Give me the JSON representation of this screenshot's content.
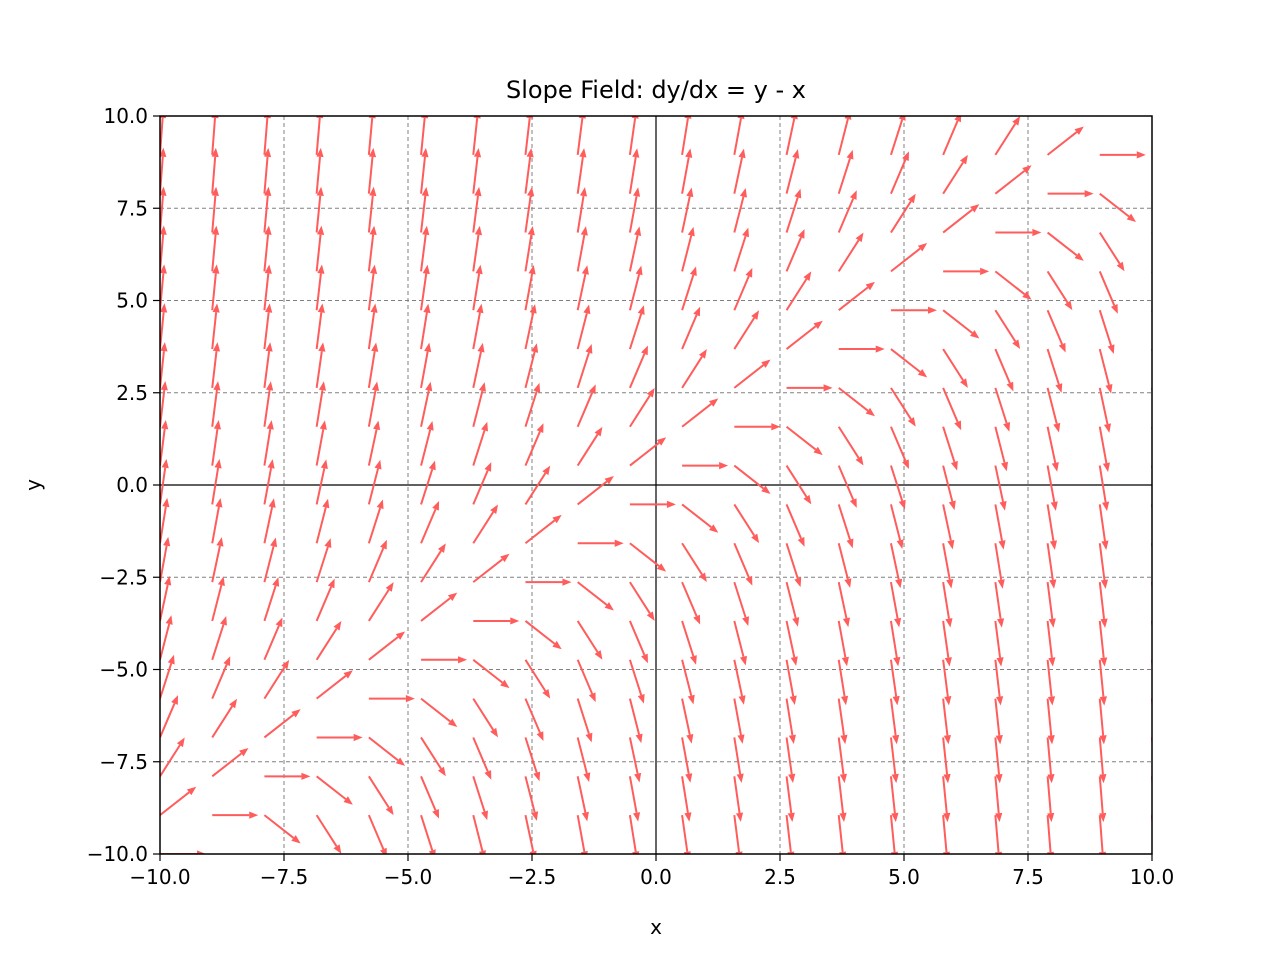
{
  "chart_data": {
    "type": "quiver",
    "title": "Slope Field: dy/dx = y - x",
    "xlabel": "x",
    "ylabel": "y",
    "xlim": [
      -10,
      10
    ],
    "ylim": [
      -10,
      10
    ],
    "slope_function": "y - x",
    "grid": true,
    "grid_style": "dashed",
    "reference_axes": true,
    "arrow_color": "#ff5c5c",
    "x_ticks": [
      "−10.0",
      "−7.5",
      "−5.0",
      "−2.5",
      "0.0",
      "2.5",
      "5.0",
      "7.5",
      "10.0"
    ],
    "y_ticks": [
      "−10.0",
      "−7.5",
      "−5.0",
      "−2.5",
      "0.0",
      "2.5",
      "5.0",
      "7.5",
      "10.0"
    ],
    "x_tick_values": [
      -10,
      -7.5,
      -5,
      -2.5,
      0,
      2.5,
      5,
      7.5,
      10
    ],
    "y_tick_values": [
      -10,
      -7.5,
      -5,
      -2.5,
      0,
      2.5,
      5,
      7.5,
      10
    ],
    "sample_x": [
      -10,
      -8.947,
      -7.895,
      -6.842,
      -5.789,
      -4.737,
      -3.684,
      -2.632,
      -1.579,
      -0.526,
      0.526,
      1.579,
      2.632,
      3.684,
      4.737,
      5.789,
      6.842,
      7.895,
      8.947,
      10
    ],
    "sample_y": [
      -10,
      -8.947,
      -7.895,
      -6.842,
      -5.789,
      -4.737,
      -3.684,
      -2.632,
      -1.579,
      -0.526,
      0.526,
      1.579,
      2.632,
      3.684,
      4.737,
      5.789,
      6.842,
      7.895,
      8.947,
      10
    ]
  }
}
